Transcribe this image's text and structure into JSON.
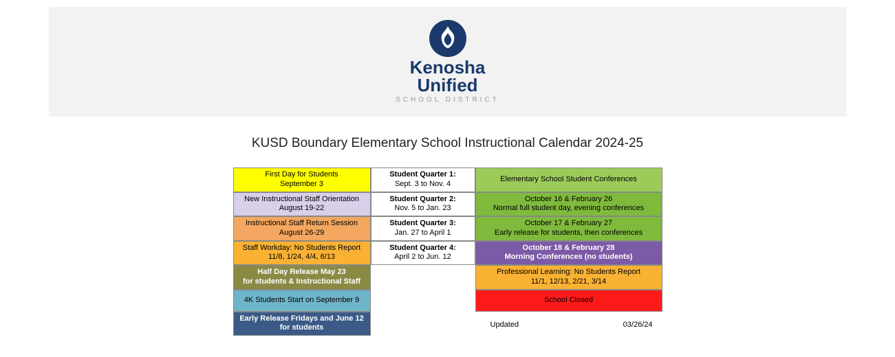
{
  "logo": {
    "line1": "Kenosha",
    "line2": "Unified",
    "sub": "SCHOOL DISTRICT",
    "flame_color": "#ffffff",
    "circle_color": "#1b3a6b"
  },
  "title": "KUSD Boundary Elementary School Instructional Calendar 2024-25",
  "colors": {
    "yellow": "#ffff00",
    "lavender": "#d9cfe8",
    "orange": "#f4a760",
    "orange2": "#f9b233",
    "olive": "#8a8a45",
    "tealblue": "#6fb5c9",
    "navy": "#3b5a87",
    "white": "#ffffff",
    "lgreen": "#9ccb5a",
    "green": "#7fba3d",
    "purple": "#7b5aa6",
    "red": "#ff1a1a",
    "black": "#000000"
  },
  "left": [
    {
      "l1": "First Day for Students",
      "l2": "September 3",
      "bg": "yellow",
      "fg": "black",
      "bold": false
    },
    {
      "l1": "New Instructional Staff Orientation",
      "l2": "August 19-22",
      "bg": "lavender",
      "fg": "black",
      "bold": false
    },
    {
      "l1": "Instructional Staff Return Session",
      "l2": "August 26-29",
      "bg": "orange",
      "fg": "black",
      "bold": false
    },
    {
      "l1": "Staff Workday: No Students Report",
      "l2": "11/8, 1/24, 4/4, 6/13",
      "bg": "orange2",
      "fg": "black",
      "bold": false
    },
    {
      "l1": "Half Day Release May 23",
      "l2": "for students & Instructional Staff",
      "bg": "olive",
      "fg": "white",
      "bold": true
    },
    {
      "l1": "4K Students Start on September 9",
      "l2": "",
      "bg": "tealblue",
      "fg": "black",
      "bold": false
    },
    {
      "l1": "Early Release Fridays and June 12",
      "l2": "for students",
      "bg": "navy",
      "fg": "white",
      "bold": true
    }
  ],
  "mid": [
    {
      "l1": "Student Quarter 1:",
      "l2": "Sept. 3 to Nov. 4"
    },
    {
      "l1": "Student Quarter 2:",
      "l2": "Nov. 5 to Jan. 23"
    },
    {
      "l1": "Student Quarter 3:",
      "l2": "Jan. 27 to April 1"
    },
    {
      "l1": "Student Quarter 4:",
      "l2": "April 2 to Jun. 12"
    }
  ],
  "right": [
    {
      "l1": "Elementary School Student Conferences",
      "l2": "",
      "bg": "lgreen",
      "fg": "black",
      "bold": false
    },
    {
      "l1": "October 16 & February 26",
      "l2": "Normal full student day, evening conferences",
      "bg": "green",
      "fg": "black",
      "bold": false
    },
    {
      "l1": "October 17 & February 27",
      "l2": "Early release for students, then conferences",
      "bg": "green",
      "fg": "black",
      "bold": false
    },
    {
      "l1": "October 18 & February 28",
      "l2": "Morning Conferences (no students)",
      "bg": "purple",
      "fg": "white",
      "bold": true
    },
    {
      "l1": "Professional Learning: No Students Report",
      "l2": "11/1, 12/13, 2/21, 3/14",
      "bg": "orange2",
      "fg": "black",
      "bold": false
    },
    {
      "l1": "School Closed",
      "l2": "",
      "bg": "red",
      "fg": "black",
      "bold": false
    }
  ],
  "updated": {
    "label": "Updated",
    "date": "03/26/24"
  }
}
